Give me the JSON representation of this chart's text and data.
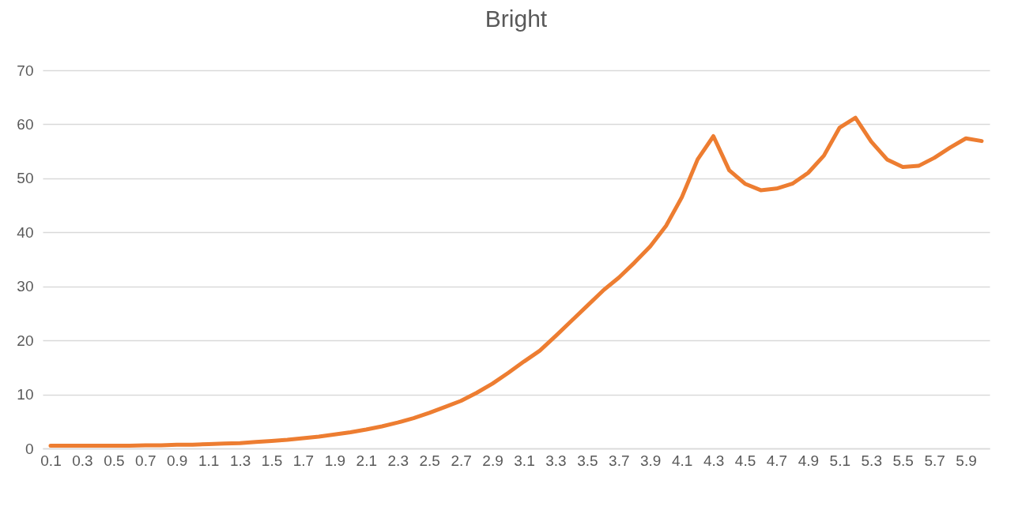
{
  "chart_data": {
    "type": "line",
    "title": "Bright",
    "categories": [
      "0.1",
      null,
      "0.3",
      null,
      "0.5",
      null,
      "0.7",
      null,
      "0.9",
      null,
      "1.1",
      null,
      "1.3",
      null,
      "1.5",
      null,
      "1.7",
      null,
      "1.9",
      null,
      "2.1",
      null,
      "2.3",
      null,
      "2.5",
      null,
      "2.7",
      null,
      "2.9",
      null,
      "3.1",
      null,
      "3.3",
      null,
      "3.5",
      null,
      "3.7",
      null,
      "3.9",
      null,
      "4.1",
      null,
      "4.3",
      null,
      "4.5",
      null,
      "4.7",
      null,
      "4.9",
      null,
      "5.1",
      null,
      "5.3",
      null,
      "5.5",
      null,
      "5.7",
      null,
      "5.9",
      null
    ],
    "series": [
      {
        "color": "#ed7d31",
        "values": [
          0.5,
          0.5,
          0.5,
          0.5,
          0.5,
          0.5,
          0.6,
          0.6,
          0.7,
          0.7,
          0.8,
          0.9,
          1.0,
          1.2,
          1.4,
          1.6,
          1.9,
          2.2,
          2.6,
          3.0,
          3.5,
          4.1,
          4.8,
          5.6,
          6.6,
          7.7,
          8.8,
          10.3,
          12.0,
          14.0,
          16.1,
          18.1,
          20.8,
          23.6,
          26.4,
          29.2,
          31.6,
          34.4,
          37.4,
          41.2,
          46.5,
          53.5,
          57.8,
          51.5,
          49.0,
          47.8,
          48.1,
          49.0,
          51.0,
          54.2,
          59.4,
          61.2,
          56.8,
          53.5,
          52.1,
          52.3,
          53.8,
          55.7,
          57.4,
          56.9
        ]
      }
    ],
    "ylim": [
      0,
      70
    ],
    "yticks": [
      0,
      10,
      20,
      30,
      40,
      50,
      60,
      70
    ],
    "grid": "y"
  }
}
